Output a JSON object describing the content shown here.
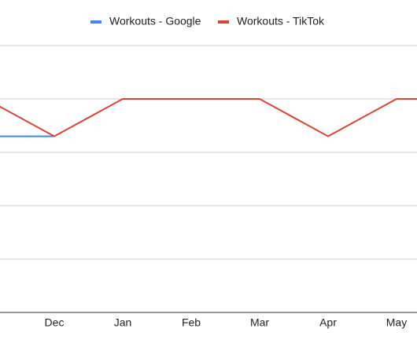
{
  "chart_data": {
    "type": "line",
    "categories": [
      null,
      "Dec",
      "Jan",
      "Feb",
      "Mar",
      "Apr",
      "May",
      null
    ],
    "series": [
      {
        "name": "Workouts - Google",
        "color": "#4285f4",
        "values": [
          3.3,
          3.3,
          null,
          null,
          null,
          null,
          null,
          null
        ]
      },
      {
        "name": "Workouts - TikTok",
        "color": "#db4437",
        "values": [
          4,
          3.3,
          4,
          4,
          4,
          3.3,
          4,
          4
        ]
      }
    ],
    "ylim": [
      0,
      5
    ],
    "yticks": [
      0,
      1,
      2,
      3,
      4,
      5
    ],
    "grid": true
  }
}
